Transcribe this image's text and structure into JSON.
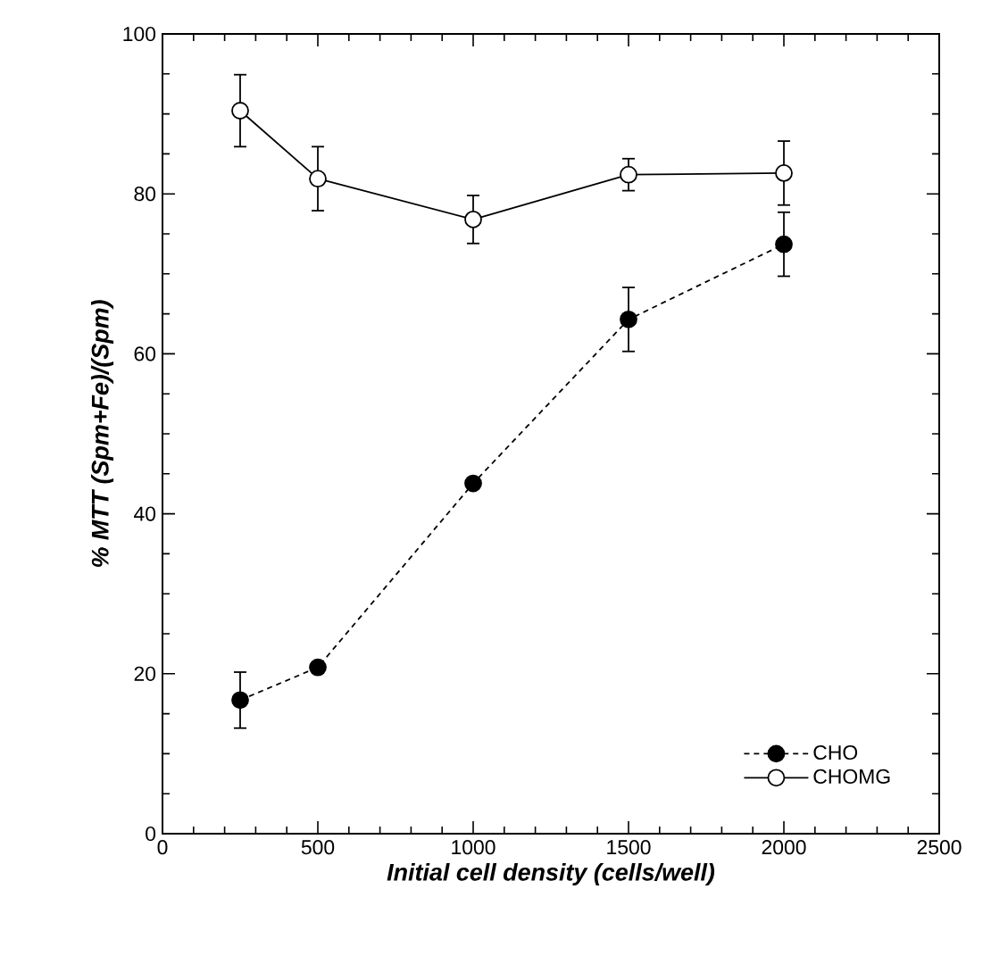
{
  "chart_data": {
    "type": "line",
    "xlabel": "Initial cell density (cells/well)",
    "ylabel": "% MTT (Spm+Fe)/(Spm)",
    "x": [
      250,
      500,
      1000,
      1500,
      2000
    ],
    "series": [
      {
        "name": "CHO",
        "color": "#000000",
        "line_style": "dashed",
        "values": [
          16.7,
          20.8,
          43.8,
          64.3,
          73.7
        ],
        "errors": [
          3.5,
          null,
          null,
          4,
          4
        ]
      },
      {
        "name": "CHOMG",
        "color": "#000000",
        "line_style": "solid",
        "values": [
          90.4,
          81.9,
          76.8,
          82.4,
          82.6
        ],
        "errors": [
          4.5,
          4,
          3,
          2,
          4
        ]
      }
    ],
    "xlim": [
      0,
      2500
    ],
    "xticks": [
      0,
      500,
      1000,
      1500,
      2000,
      2500
    ],
    "ylim": [
      0,
      100
    ],
    "yticks": [
      0,
      20,
      40,
      60,
      80,
      100
    ],
    "marker": "circle",
    "grid": false,
    "legend": "bottom right"
  }
}
